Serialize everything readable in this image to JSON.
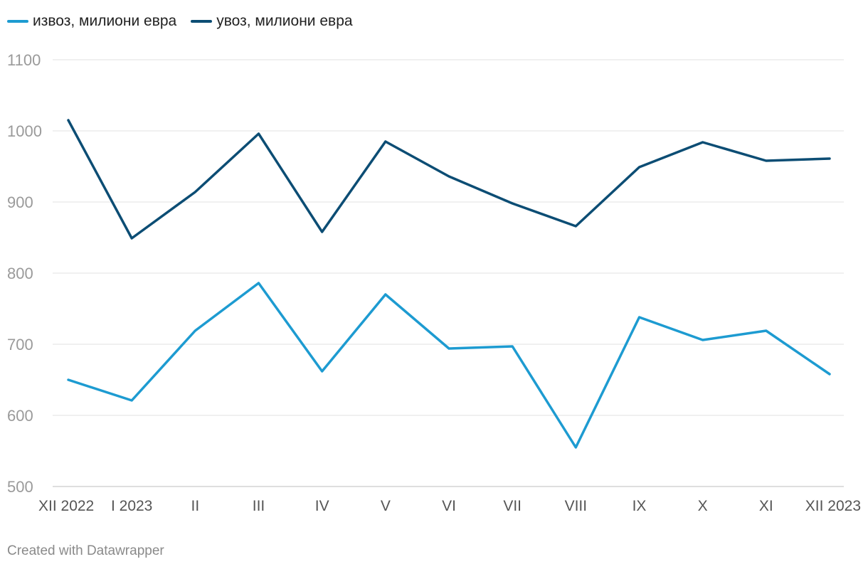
{
  "chart_data": {
    "type": "line",
    "categories": [
      "XII 2022",
      "I 2023",
      "II",
      "III",
      "IV",
      "V",
      "VI",
      "VII",
      "VIII",
      "IX",
      "X",
      "XI",
      "XII 2023"
    ],
    "series": [
      {
        "name": "извоз, милиони евра",
        "color": "#1d9bd1",
        "values": [
          650,
          621,
          719,
          786,
          662,
          770,
          694,
          697,
          555,
          738,
          706,
          719,
          658
        ]
      },
      {
        "name": "увоз, милиони евра",
        "color": "#0c4d74",
        "values": [
          1015,
          849,
          914,
          996,
          858,
          985,
          936,
          898,
          866,
          949,
          984,
          958,
          961
        ]
      }
    ],
    "ylim": [
      500,
      1100
    ],
    "yticks": [
      500,
      600,
      700,
      800,
      900,
      1000,
      1100
    ],
    "grid": true,
    "legend_position": "top-left"
  },
  "footer": {
    "credit": "Created with Datawrapper"
  }
}
